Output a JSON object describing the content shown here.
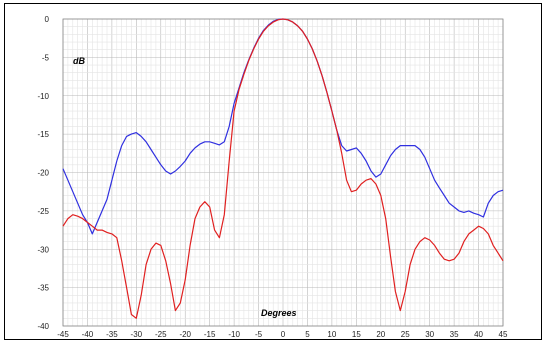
{
  "chart_data": {
    "type": "line",
    "title": "",
    "xlabel": "Degrees",
    "ylabel": "dB",
    "xlim": [
      -45,
      45
    ],
    "ylim": [
      -40,
      0
    ],
    "grid": true,
    "x_ticks": [
      "-45",
      "-40",
      "-35",
      "-30",
      "-25",
      "-20",
      "-15",
      "-10",
      "-5",
      "0",
      "5",
      "10",
      "15",
      "20",
      "25",
      "30",
      "35",
      "40",
      "45"
    ],
    "y_ticks": [
      "0",
      "-5",
      "-10",
      "-15",
      "-20",
      "-25",
      "-30",
      "-35",
      "-40"
    ],
    "series": [
      {
        "color": "#3030e0",
        "points": [
          [
            -45,
            -19.5
          ],
          [
            -44,
            -21
          ],
          [
            -43,
            -22.5
          ],
          [
            -42,
            -24
          ],
          [
            -41,
            -25.5
          ],
          [
            -40,
            -26.5
          ],
          [
            -39,
            -28
          ],
          [
            -38,
            -26.5
          ],
          [
            -37,
            -25
          ],
          [
            -36,
            -23.5
          ],
          [
            -35,
            -21
          ],
          [
            -34,
            -18.5
          ],
          [
            -33,
            -16.5
          ],
          [
            -32,
            -15.3
          ],
          [
            -31,
            -15
          ],
          [
            -30,
            -14.8
          ],
          [
            -29,
            -15.3
          ],
          [
            -28,
            -16
          ],
          [
            -27,
            -17
          ],
          [
            -26,
            -18
          ],
          [
            -25,
            -19
          ],
          [
            -24,
            -19.8
          ],
          [
            -23,
            -20.2
          ],
          [
            -22,
            -19.8
          ],
          [
            -21,
            -19.2
          ],
          [
            -20,
            -18.5
          ],
          [
            -19,
            -17.5
          ],
          [
            -18,
            -16.8
          ],
          [
            -17,
            -16.3
          ],
          [
            -16,
            -16
          ],
          [
            -15,
            -16
          ],
          [
            -14,
            -16.2
          ],
          [
            -13,
            -16.4
          ],
          [
            -12,
            -16
          ],
          [
            -11,
            -14
          ],
          [
            -10,
            -11
          ],
          [
            -9,
            -9
          ],
          [
            -8,
            -7
          ],
          [
            -7,
            -5.3
          ],
          [
            -6,
            -3.8
          ],
          [
            -5,
            -2.5
          ],
          [
            -4,
            -1.5
          ],
          [
            -3,
            -0.8
          ],
          [
            -2,
            -0.3
          ],
          [
            -1,
            -0.05
          ],
          [
            0,
            0
          ],
          [
            1,
            -0.1
          ],
          [
            2,
            -0.4
          ],
          [
            3,
            -0.9
          ],
          [
            4,
            -1.6
          ],
          [
            5,
            -2.6
          ],
          [
            6,
            -3.9
          ],
          [
            7,
            -5.5
          ],
          [
            8,
            -7.4
          ],
          [
            9,
            -9.6
          ],
          [
            10,
            -12
          ],
          [
            11,
            -14.5
          ],
          [
            12,
            -16.5
          ],
          [
            13,
            -17.2
          ],
          [
            14,
            -17
          ],
          [
            15,
            -16.8
          ],
          [
            16,
            -17.5
          ],
          [
            17,
            -18.5
          ],
          [
            18,
            -19.8
          ],
          [
            19,
            -20.6
          ],
          [
            20,
            -20.2
          ],
          [
            21,
            -19
          ],
          [
            22,
            -17.8
          ],
          [
            23,
            -17
          ],
          [
            24,
            -16.5
          ],
          [
            25,
            -16.5
          ],
          [
            26,
            -16.5
          ],
          [
            27,
            -16.5
          ],
          [
            28,
            -17
          ],
          [
            29,
            -18
          ],
          [
            30,
            -19.5
          ],
          [
            31,
            -21
          ],
          [
            32,
            -22
          ],
          [
            33,
            -23
          ],
          [
            34,
            -24
          ],
          [
            35,
            -24.5
          ],
          [
            36,
            -25
          ],
          [
            37,
            -25.2
          ],
          [
            38,
            -25
          ],
          [
            39,
            -25.3
          ],
          [
            40,
            -25.5
          ],
          [
            41,
            -25.8
          ],
          [
            42,
            -24
          ],
          [
            43,
            -23
          ],
          [
            44,
            -22.5
          ],
          [
            45,
            -22.3
          ]
        ]
      },
      {
        "color": "#e02020",
        "points": [
          [
            -45,
            -27
          ],
          [
            -44,
            -26
          ],
          [
            -43,
            -25.5
          ],
          [
            -42,
            -25.7
          ],
          [
            -41,
            -26
          ],
          [
            -40,
            -26.5
          ],
          [
            -39,
            -27
          ],
          [
            -38,
            -27.5
          ],
          [
            -37,
            -27.5
          ],
          [
            -36,
            -27.8
          ],
          [
            -35,
            -28
          ],
          [
            -34,
            -28.5
          ],
          [
            -33,
            -31.5
          ],
          [
            -32,
            -35
          ],
          [
            -31,
            -38.5
          ],
          [
            -30,
            -39
          ],
          [
            -29,
            -36
          ],
          [
            -28,
            -32
          ],
          [
            -27,
            -30
          ],
          [
            -26,
            -29.2
          ],
          [
            -25,
            -29.5
          ],
          [
            -24,
            -31.5
          ],
          [
            -23,
            -34.5
          ],
          [
            -22,
            -38
          ],
          [
            -21,
            -37
          ],
          [
            -20,
            -34
          ],
          [
            -19,
            -29.5
          ],
          [
            -18,
            -26
          ],
          [
            -17,
            -24.5
          ],
          [
            -16,
            -23.8
          ],
          [
            -15,
            -24.5
          ],
          [
            -14,
            -27.5
          ],
          [
            -13,
            -28.5
          ],
          [
            -12,
            -25.5
          ],
          [
            -11,
            -18.5
          ],
          [
            -10,
            -12
          ],
          [
            -9,
            -9.2
          ],
          [
            -8,
            -7.2
          ],
          [
            -7,
            -5.4
          ],
          [
            -6,
            -3.9
          ],
          [
            -5,
            -2.6
          ],
          [
            -4,
            -1.6
          ],
          [
            -3,
            -0.9
          ],
          [
            -2,
            -0.4
          ],
          [
            -1,
            -0.1
          ],
          [
            0,
            0
          ],
          [
            1,
            -0.1
          ],
          [
            2,
            -0.4
          ],
          [
            3,
            -0.9
          ],
          [
            4,
            -1.6
          ],
          [
            5,
            -2.6
          ],
          [
            6,
            -3.9
          ],
          [
            7,
            -5.5
          ],
          [
            8,
            -7.4
          ],
          [
            9,
            -9.6
          ],
          [
            10,
            -12
          ],
          [
            11,
            -14.5
          ],
          [
            12,
            -17.5
          ],
          [
            13,
            -21
          ],
          [
            14,
            -22.5
          ],
          [
            15,
            -22.3
          ],
          [
            16,
            -21.5
          ],
          [
            17,
            -21
          ],
          [
            18,
            -20.8
          ],
          [
            19,
            -21.5
          ],
          [
            20,
            -23
          ],
          [
            21,
            -26
          ],
          [
            22,
            -31
          ],
          [
            23,
            -35.5
          ],
          [
            24,
            -38
          ],
          [
            25,
            -35.5
          ],
          [
            26,
            -32
          ],
          [
            27,
            -30
          ],
          [
            28,
            -29
          ],
          [
            29,
            -28.5
          ],
          [
            30,
            -28.8
          ],
          [
            31,
            -29.5
          ],
          [
            32,
            -30.5
          ],
          [
            33,
            -31.3
          ],
          [
            34,
            -31.5
          ],
          [
            35,
            -31.3
          ],
          [
            36,
            -30.5
          ],
          [
            37,
            -29
          ],
          [
            38,
            -28
          ],
          [
            39,
            -27.5
          ],
          [
            40,
            -27
          ],
          [
            41,
            -27.3
          ],
          [
            42,
            -28
          ],
          [
            43,
            -29.5
          ],
          [
            44,
            -30.5
          ],
          [
            45,
            -31.5
          ]
        ]
      }
    ]
  }
}
